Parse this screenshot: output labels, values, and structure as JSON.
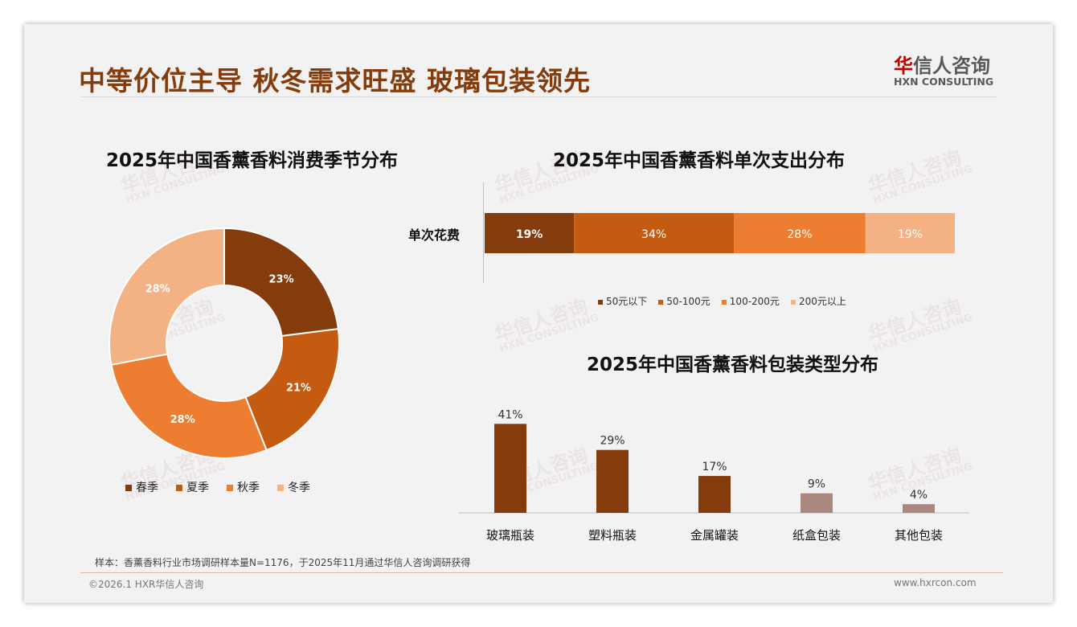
{
  "header": {
    "title": "中等价位主导 秋冬需求旺盛 玻璃包装领先",
    "logo_cn_red": "华",
    "logo_cn": "信人咨询",
    "logo_en": "HXN CONSULTING"
  },
  "watermark": {
    "cn": "华信人咨询",
    "en": "HXN CONSULTING"
  },
  "colors": {
    "c1": "#843c0c",
    "c2": "#c55a11",
    "c3": "#ed7d31",
    "c4": "#f4b183",
    "gray": "#a9877c"
  },
  "chart_data": [
    {
      "type": "pie",
      "title": "2025年中国香薰香料消费季节分布",
      "categories": [
        "春季",
        "夏季",
        "秋季",
        "冬季"
      ],
      "values": [
        23,
        21,
        28,
        28
      ],
      "labels": [
        "23%",
        "21%",
        "28%",
        "28%"
      ],
      "legend": "bottom"
    },
    {
      "type": "bar",
      "stacked": true,
      "orientation": "horizontal",
      "title": "2025年中国香薰香料单次支出分布",
      "categories": [
        "单次花费"
      ],
      "series": [
        {
          "name": "50元以下",
          "values": [
            19
          ],
          "label": "19%"
        },
        {
          "name": "50-100元",
          "values": [
            34
          ],
          "label": "34%"
        },
        {
          "name": "100-200元",
          "values": [
            28
          ],
          "label": "28%"
        },
        {
          "name": "200元以上",
          "values": [
            19
          ],
          "label": "19%"
        }
      ],
      "legend": "bottom"
    },
    {
      "type": "bar",
      "title": "2025年中国香薰香料包装类型分布",
      "categories": [
        "玻璃瓶装",
        "塑料瓶装",
        "金属罐装",
        "纸盒包装",
        "其他包装"
      ],
      "values": [
        41,
        29,
        17,
        9,
        4
      ],
      "labels": [
        "41%",
        "29%",
        "17%",
        "9%",
        "4%"
      ],
      "ylim": [
        0,
        45
      ]
    }
  ],
  "footer": {
    "note": "样本：香薰香料行业市场调研样本量N=1176，于2025年11月通过华信人咨询调研获得",
    "copyright": "©2026.1 HXR华信人咨询",
    "url": "www.hxrcon.com"
  }
}
